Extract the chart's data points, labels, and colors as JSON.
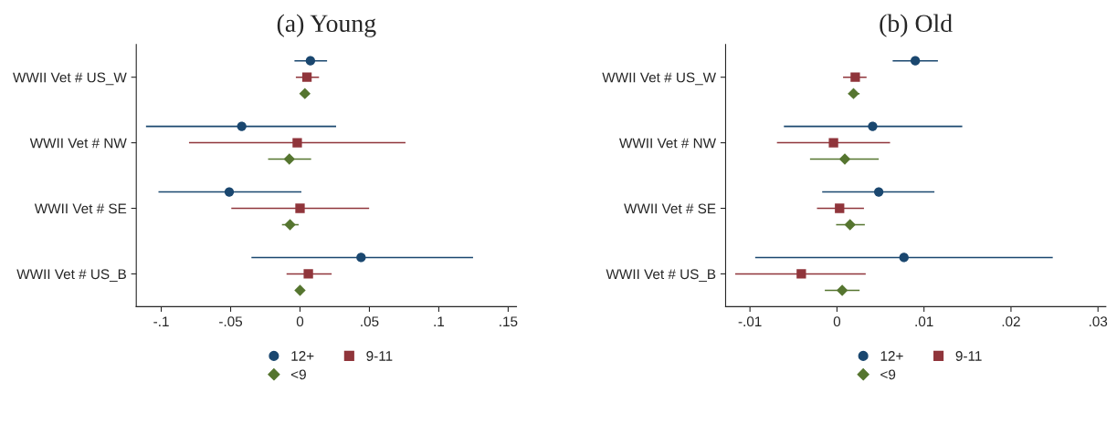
{
  "chart_data": [
    {
      "type": "scatter",
      "orientation": "horizontal",
      "title": "(a) Young",
      "categories": [
        "WWII Vet # US_W",
        "WWII Vet # NW",
        "WWII Vet # SE",
        "WWII Vet # US_B"
      ],
      "legend": "bottom",
      "grid": false,
      "xlim": [
        -0.118,
        0.156
      ],
      "xticks": [
        {
          "value": -0.1,
          "label": "-.1"
        },
        {
          "value": -0.05,
          "label": "-.05"
        },
        0,
        {
          "value": 0.05,
          "label": ".05"
        },
        {
          "value": 0.1,
          "label": ".1"
        },
        {
          "value": 0.15,
          "label": ".15"
        }
      ],
      "series": [
        {
          "name": "12+",
          "color": "#1a476f",
          "marker": "circle",
          "values": [
            0.0075,
            -0.042,
            -0.051,
            0.044
          ],
          "errors": [
            [
              -0.004,
              0.0195
            ],
            [
              -0.111,
              0.026
            ],
            [
              -0.102,
              0.001
            ],
            [
              -0.035,
              0.1247
            ]
          ]
        },
        {
          "name": "9-11",
          "color": "#90353b",
          "marker": "square",
          "values": [
            0.005,
            -0.002,
            0.0,
            0.006
          ],
          "errors": [
            [
              -0.003,
              0.0137
            ],
            [
              -0.08,
              0.076
            ],
            [
              -0.0495,
              0.0498
            ],
            [
              -0.0097,
              0.0228
            ]
          ]
        },
        {
          "name": "<9",
          "color": "#55752f",
          "marker": "diamond",
          "values": [
            0.0035,
            -0.0077,
            -0.0072,
            0.0
          ],
          "errors": [
            null,
            [
              -0.023,
              0.008
            ],
            [
              -0.013,
              -0.001
            ],
            null
          ]
        }
      ]
    },
    {
      "type": "scatter",
      "orientation": "horizontal",
      "title": "(b) Old",
      "categories": [
        "WWII Vet # US_W",
        "WWII Vet # NW",
        "WWII Vet # SE",
        "WWII Vet # US_B"
      ],
      "legend": "bottom",
      "grid": false,
      "xlim": [
        -0.0128,
        0.0309
      ],
      "xticks": [
        {
          "value": -0.01,
          "label": "-.01"
        },
        0,
        {
          "value": 0.01,
          "label": ".01"
        },
        {
          "value": 0.02,
          "label": ".02"
        },
        {
          "value": 0.03,
          "label": ".03"
        }
      ],
      "series": [
        {
          "name": "12+",
          "color": "#1a476f",
          "marker": "circle",
          "values": [
            0.009,
            0.0041,
            0.0048,
            0.0077
          ],
          "errors": [
            [
              0.0064,
              0.0116
            ],
            [
              -0.0061,
              0.0144
            ],
            [
              -0.0017,
              0.0112
            ],
            [
              -0.0094,
              0.0248
            ]
          ]
        },
        {
          "name": "9-11",
          "color": "#90353b",
          "marker": "square",
          "values": [
            0.0021,
            -0.0004,
            0.0003,
            -0.0041
          ],
          "errors": [
            [
              0.0007,
              0.0034
            ],
            [
              -0.0069,
              0.0061
            ],
            [
              -0.0023,
              0.0031
            ],
            [
              -0.0117,
              0.0033
            ]
          ]
        },
        {
          "name": "<9",
          "color": "#55752f",
          "marker": "diamond",
          "values": [
            0.0019,
            0.0009,
            0.0015,
            0.0006
          ],
          "errors": [
            [
              0.0013,
              0.0026
            ],
            [
              -0.0031,
              0.0048
            ],
            [
              -0.0001,
              0.0032
            ],
            [
              -0.0014,
              0.0026
            ]
          ]
        }
      ]
    }
  ]
}
